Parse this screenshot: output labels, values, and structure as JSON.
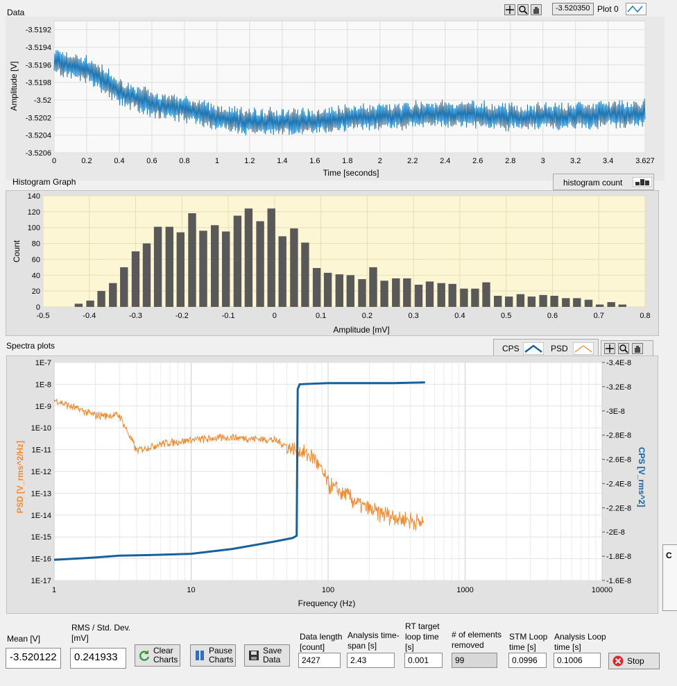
{
  "data_chart": {
    "title": "Data",
    "cursor_value": "-3.520350",
    "plot_legend": "Plot 0",
    "xlabel": "Time [seconds]",
    "ylabel": "Amplitude [V]",
    "x_ticks": [
      "0",
      "0.2",
      "0.4",
      "0.6",
      "0.8",
      "1",
      "1.2",
      "1.4",
      "1.6",
      "1.8",
      "2",
      "2.2",
      "2.4",
      "2.6",
      "2.8",
      "3",
      "3.2",
      "3.4",
      "3.627"
    ],
    "y_ticks": [
      "-3.5192",
      "-3.5194",
      "-3.5196",
      "-3.5198",
      "-3.52",
      "-3.5202",
      "-3.5204",
      "-3.5206"
    ]
  },
  "histogram_chart": {
    "title": "Histogram Graph",
    "legend": "histogram count",
    "xlabel": "Amplitude [mV]",
    "ylabel": "Count",
    "x_ticks": [
      "-0.5",
      "-0.4",
      "-0.3",
      "-0.2",
      "-0.1",
      "0",
      "0.1",
      "0.2",
      "0.3",
      "0.4",
      "0.5",
      "0.6",
      "0.7",
      "0.8"
    ],
    "y_ticks": [
      "0",
      "20",
      "40",
      "60",
      "80",
      "100",
      "120",
      "140"
    ]
  },
  "spectra_chart": {
    "title": "Spectra plots",
    "legend_cps": "CPS",
    "legend_psd": "PSD",
    "xlabel": "Frequency (Hz)",
    "ylabel_left": "PSD [V_rms^2/Hz]",
    "ylabel_right": "CPS [V_rms^2]",
    "x_ticks": [
      "1",
      "10",
      "100",
      "1000",
      "10000"
    ],
    "y_left_ticks": [
      "1E-7",
      "1E-8",
      "1E-9",
      "1E-10",
      "1E-11",
      "1E-12",
      "1E-13",
      "1E-14",
      "1E-15",
      "1E-16",
      "1E-17"
    ],
    "y_right_ticks": [
      "-3.4E-8",
      "-3.2E-8",
      "-3E-8",
      "-2.8E-8",
      "-2.6E-8",
      "-2.4E-8",
      "-2.2E-8",
      "-2E-8",
      "-1.8E-8",
      "-1.6E-8"
    ]
  },
  "chart_data": [
    {
      "type": "line",
      "title": "Data",
      "xlabel": "Time [seconds]",
      "ylabel": "Amplitude [V]",
      "xlim": [
        0,
        3.627
      ],
      "ylim": [
        -3.5206,
        -3.5191
      ],
      "grid": true,
      "series": [
        {
          "name": "Plot 0",
          "x": [
            0,
            0.2,
            0.4,
            0.6,
            0.8,
            1.0,
            1.2,
            1.4,
            1.6,
            1.8,
            2.0,
            2.4,
            2.8,
            3.2,
            3.627
          ],
          "y": [
            -3.51955,
            -3.51965,
            -3.5199,
            -3.52005,
            -3.5201,
            -3.5202,
            -3.52025,
            -3.52025,
            -3.52025,
            -3.5202,
            -3.5202,
            -3.52015,
            -3.5202,
            -3.52018,
            -3.52015
          ]
        }
      ]
    },
    {
      "type": "bar",
      "title": "Histogram Graph",
      "xlabel": "Amplitude [mV]",
      "ylabel": "Count",
      "xlim": [
        -0.5,
        0.8
      ],
      "ylim": [
        0,
        140
      ],
      "grid": true,
      "legend": "top-right",
      "x": [
        -0.423,
        -0.398,
        -0.374,
        -0.349,
        -0.325,
        -0.3,
        -0.276,
        -0.252,
        -0.227,
        -0.203,
        -0.178,
        -0.154,
        -0.129,
        -0.105,
        -0.08,
        -0.056,
        -0.031,
        -0.007,
        0.017,
        0.042,
        0.066,
        0.091,
        0.115,
        0.14,
        0.164,
        0.189,
        0.213,
        0.237,
        0.262,
        0.286,
        0.311,
        0.335,
        0.36,
        0.384,
        0.409,
        0.433,
        0.457,
        0.482,
        0.506,
        0.531,
        0.555,
        0.58,
        0.604,
        0.629,
        0.653,
        0.678,
        0.702,
        0.727,
        0.751
      ],
      "series": [
        {
          "name": "histogram count",
          "values": [
            4,
            8,
            20,
            30,
            50,
            70,
            80,
            101,
            101,
            94,
            118,
            96,
            103,
            95,
            115,
            124,
            108,
            124,
            89,
            99,
            81,
            49,
            43,
            41,
            40,
            35,
            50,
            33,
            36,
            36,
            28,
            32,
            30,
            29,
            23,
            23,
            31,
            14,
            13,
            16,
            13,
            15,
            14,
            11,
            11,
            9,
            3,
            6,
            3
          ]
        }
      ]
    },
    {
      "type": "line",
      "title": "Spectra plots",
      "xlabel": "Frequency (Hz)",
      "scale": "log-x, log-y-left",
      "xlim": [
        1,
        10000
      ],
      "ylim_left": [
        1e-17,
        1e-07
      ],
      "ylim_right": [
        -1.6e-08,
        -3.4e-08
      ],
      "grid": true,
      "series": [
        {
          "name": "PSD",
          "axis": "left",
          "x": [
            1,
            2,
            3,
            4,
            6,
            10,
            20,
            40,
            60,
            80,
            100,
            200,
            300,
            500
          ],
          "y": [
            2e-09,
            4e-10,
            4e-10,
            1e-11,
            2e-11,
            3e-11,
            4e-11,
            3e-11,
            1e-11,
            5e-12,
            3e-13,
            2e-14,
            1e-14,
            5e-15
          ]
        },
        {
          "name": "CPS",
          "axis": "right",
          "x": [
            1,
            2,
            3,
            5,
            10,
            20,
            40,
            55,
            59,
            60,
            62,
            100,
            300,
            510
          ],
          "y": [
            -1.77e-08,
            -1.79e-08,
            -1.805e-08,
            -1.81e-08,
            -1.82e-08,
            -1.86e-08,
            -1.92e-08,
            -1.95e-08,
            -1.97e-08,
            -3.18e-08,
            -3.22e-08,
            -3.23e-08,
            -3.23e-08,
            -3.235e-08
          ]
        }
      ]
    }
  ],
  "bottom_panel": {
    "mean_label": "Mean [V]",
    "mean_value": "-3.520122",
    "rms_label": "RMS / Std. Dev. [mV]",
    "rms_value": "0.241933",
    "clear_charts": "Clear Charts",
    "pause_charts": "Pause Charts",
    "save_data": "Save Data",
    "data_length_label": "Data length [count]",
    "data_length_value": "2427",
    "analysis_span_label": "Analysis time-span [s]",
    "analysis_span_value": "2.43",
    "rt_target_label": "RT target loop time [s]",
    "rt_target_value": "0.001",
    "elements_removed_label": "# of elements removed",
    "elements_removed_value": "99",
    "stm_loop_label": "STM Loop time [s]",
    "stm_loop_value": "0.0996",
    "analysis_loop_label": "Analysis Loop time [s]",
    "analysis_loop_value": "0.1006",
    "stop": "Stop"
  },
  "colors": {
    "data_line": "#1f77b4",
    "bars": "#595959",
    "hist_bg": "#fdf6d4",
    "psd": "#f08a33",
    "cps": "#17609e"
  }
}
